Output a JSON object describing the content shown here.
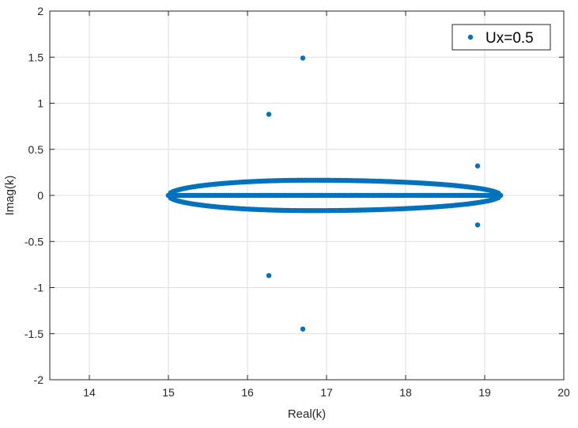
{
  "chart_data": {
    "type": "scatter",
    "xlabel": "Real(k)",
    "ylabel": "Imag(k)",
    "xlim": [
      13.5,
      20
    ],
    "ylim": [
      -2,
      2
    ],
    "xticks": [
      14,
      15,
      16,
      17,
      18,
      19,
      20
    ],
    "yticks": [
      -2,
      -1.5,
      -1,
      -0.5,
      0,
      0.5,
      1,
      1.5,
      2
    ],
    "grid": true,
    "legend": {
      "placement": "top-right"
    },
    "series": [
      {
        "name": "Ux=0.5",
        "color": "#0072BD",
        "ellipse_band": {
          "x_start": 15.0,
          "x_end": 19.2,
          "x_peak": 16.8,
          "imag_peak": 0.165,
          "points_per_branch": 150
        },
        "points": [
          {
            "x": 16.7,
            "y": 1.49
          },
          {
            "x": 16.27,
            "y": 0.88
          },
          {
            "x": 18.91,
            "y": 0.32
          },
          {
            "x": 18.91,
            "y": -0.32
          },
          {
            "x": 16.27,
            "y": -0.87
          },
          {
            "x": 16.7,
            "y": -1.45
          }
        ]
      }
    ]
  }
}
